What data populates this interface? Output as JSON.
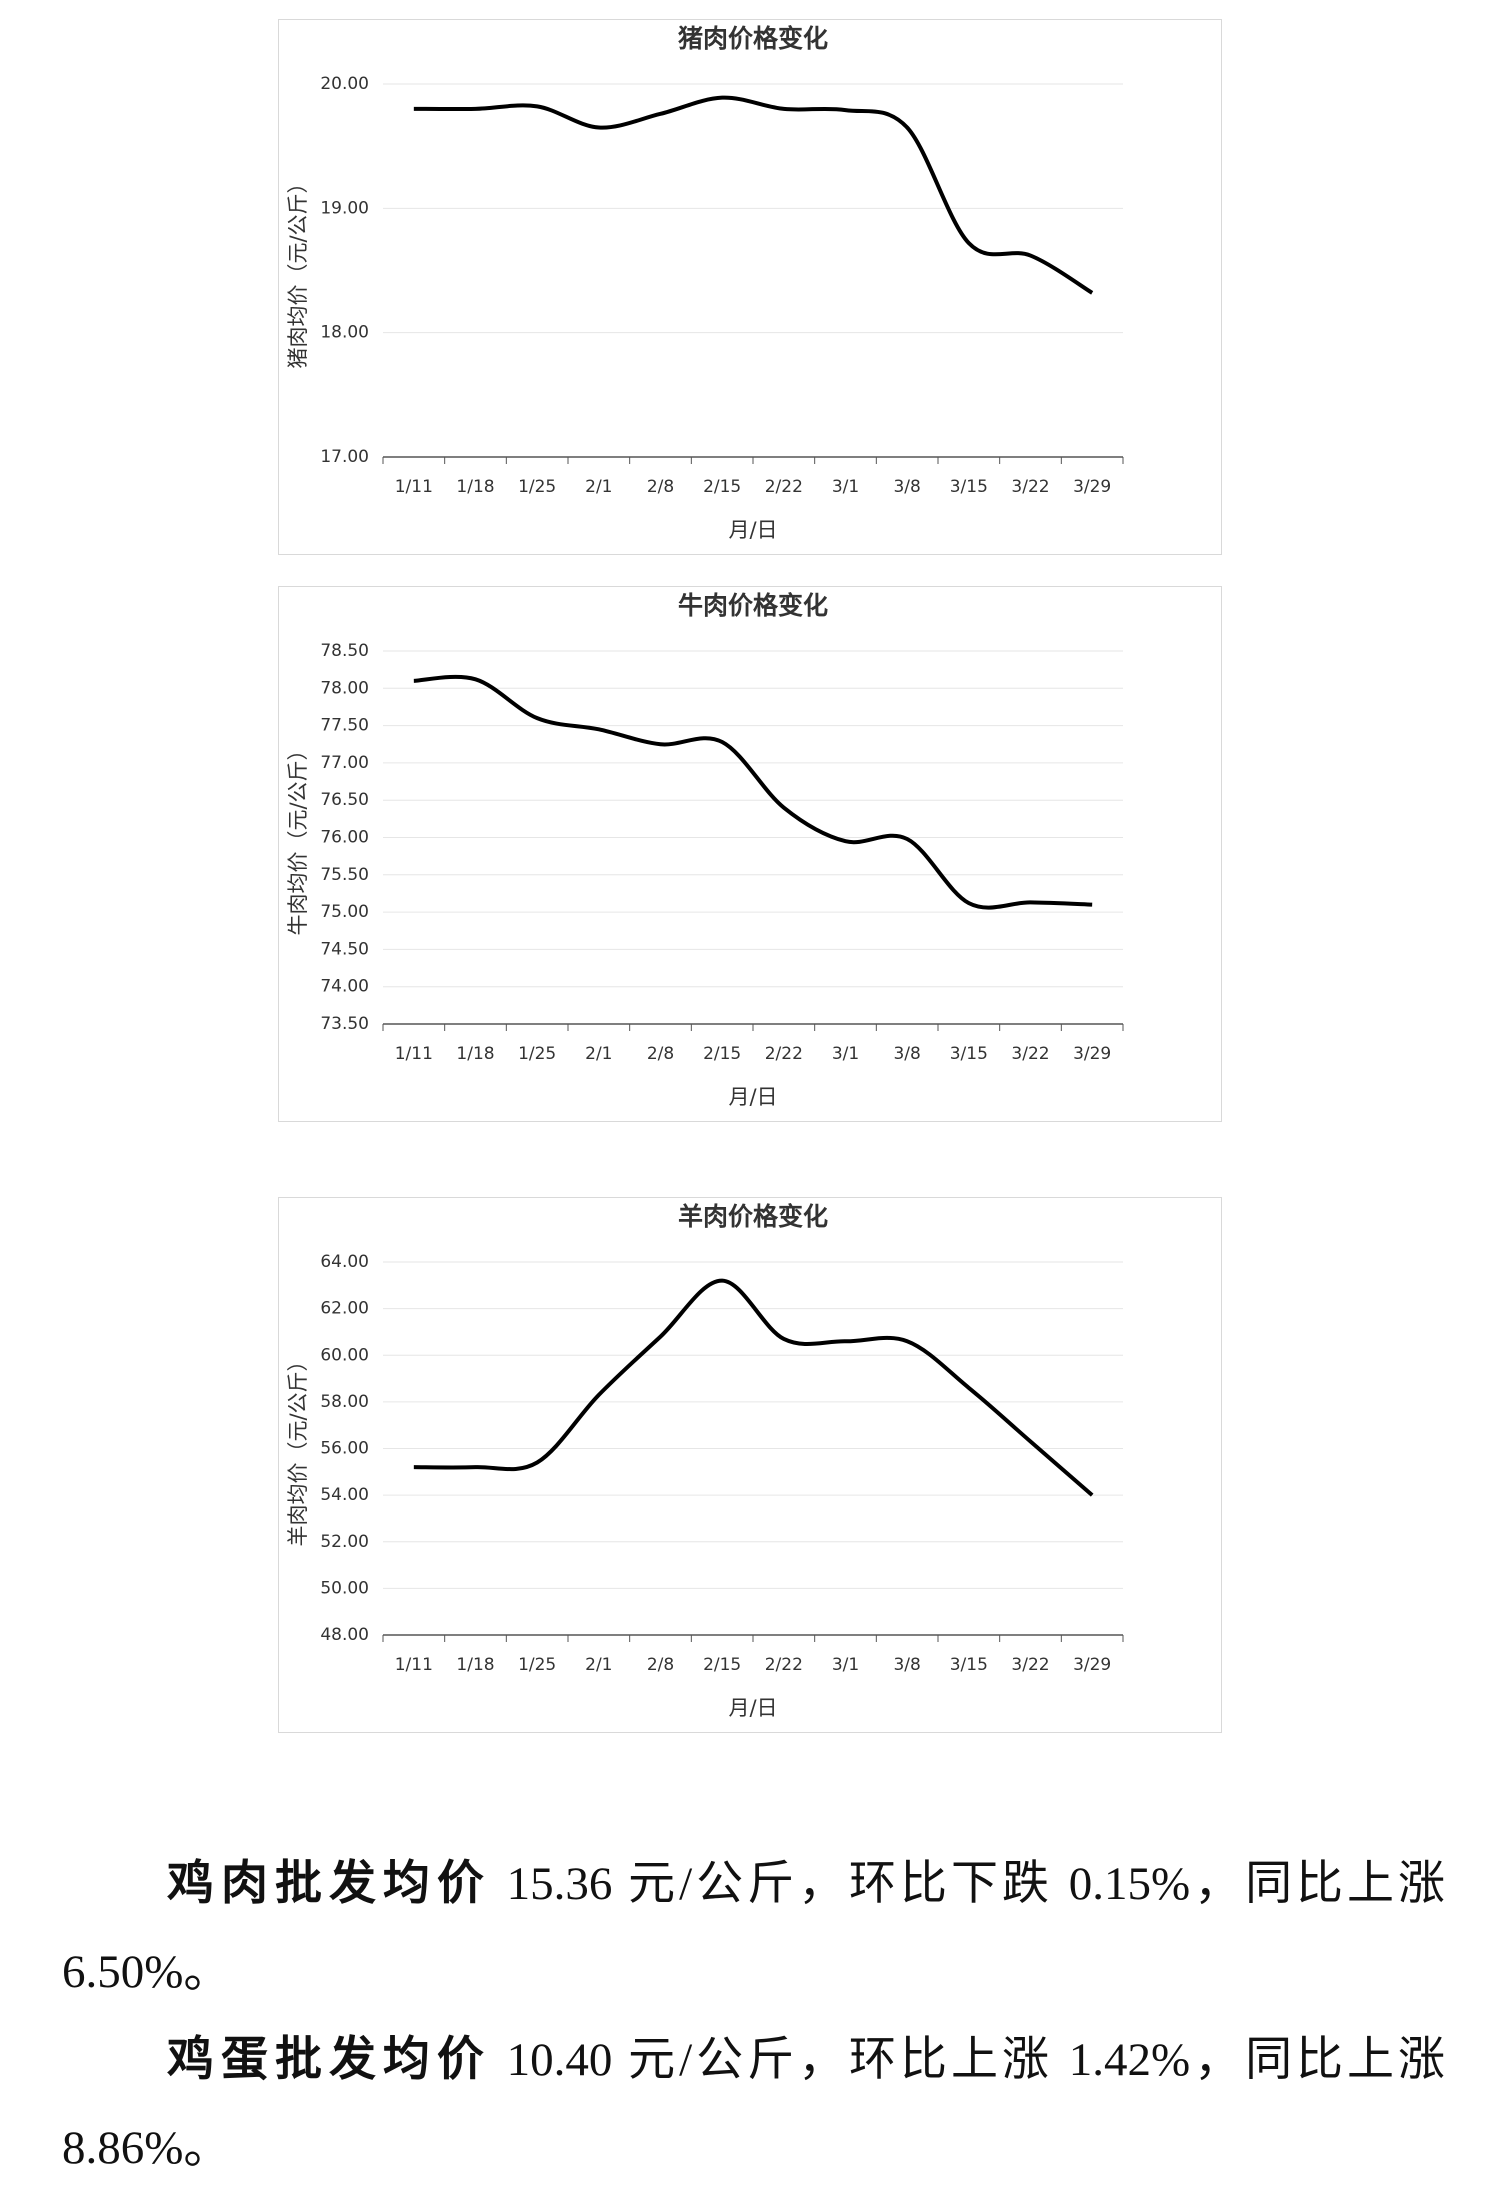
{
  "chart_data": [
    {
      "type": "line",
      "title": "猪肉价格变化",
      "y_label": "猪肉均价（元/公斤）",
      "x_label": "月/日",
      "color": "#000000",
      "categories": [
        "1/11",
        "1/18",
        "1/25",
        "2/1",
        "2/8",
        "2/15",
        "2/22",
        "3/1",
        "3/8",
        "3/15",
        "3/22",
        "3/29"
      ],
      "values": [
        19.8,
        19.8,
        19.82,
        19.65,
        19.76,
        19.89,
        19.8,
        19.79,
        19.65,
        18.72,
        18.62,
        18.32
      ],
      "ylim": [
        17,
        20
      ],
      "yticks": [
        {
          "value": 17,
          "label": "17.00"
        },
        {
          "value": 18,
          "label": "18.00"
        },
        {
          "value": 19,
          "label": "19.00"
        },
        {
          "value": 20,
          "label": "20.00"
        }
      ],
      "grid": true
    },
    {
      "type": "line",
      "title": "牛肉价格变化",
      "y_label": "牛肉均价（元/公斤）",
      "x_label": "月/日",
      "color": "#000000",
      "categories": [
        "1/11",
        "1/18",
        "1/25",
        "2/1",
        "2/8",
        "2/15",
        "2/22",
        "3/1",
        "3/8",
        "3/15",
        "3/22",
        "3/29"
      ],
      "values": [
        78.1,
        78.12,
        77.6,
        77.45,
        77.25,
        77.28,
        76.4,
        75.95,
        75.98,
        75.12,
        75.13,
        75.1
      ],
      "ylim": [
        73.5,
        78.5
      ],
      "yticks": [
        {
          "value": 73.5,
          "label": "73.50"
        },
        {
          "value": 74,
          "label": "74.00"
        },
        {
          "value": 74.5,
          "label": "74.50"
        },
        {
          "value": 75,
          "label": "75.00"
        },
        {
          "value": 75.5,
          "label": "75.50"
        },
        {
          "value": 76,
          "label": "76.00"
        },
        {
          "value": 76.5,
          "label": "76.50"
        },
        {
          "value": 77,
          "label": "77.00"
        },
        {
          "value": 77.5,
          "label": "77.50"
        },
        {
          "value": 78,
          "label": "78.00"
        },
        {
          "value": 78.5,
          "label": "78.50"
        }
      ],
      "grid": true
    },
    {
      "type": "line",
      "title": "羊肉价格变化",
      "y_label": "羊肉均价（元/公斤）",
      "x_label": "月/日",
      "color": "#000000",
      "categories": [
        "1/11",
        "1/18",
        "1/25",
        "2/1",
        "2/8",
        "2/15",
        "2/22",
        "3/1",
        "3/8",
        "3/15",
        "3/22",
        "3/29"
      ],
      "values": [
        55.2,
        55.2,
        55.4,
        58.3,
        60.8,
        63.2,
        60.7,
        60.6,
        60.6,
        58.6,
        56.3,
        54.0
      ],
      "ylim": [
        48,
        64
      ],
      "yticks": [
        {
          "value": 48,
          "label": "48.00"
        },
        {
          "value": 50,
          "label": "50.00"
        },
        {
          "value": 52,
          "label": "52.00"
        },
        {
          "value": 54,
          "label": "54.00"
        },
        {
          "value": 56,
          "label": "56.00"
        },
        {
          "value": 58,
          "label": "58.00"
        },
        {
          "value": 60,
          "label": "60.00"
        },
        {
          "value": 62,
          "label": "62.00"
        },
        {
          "value": 64,
          "label": "64.00"
        }
      ],
      "grid": true
    }
  ],
  "paragraphs": [
    {
      "lead": "鸡肉批发均价",
      "text": "15.36 元/公斤，环比下跌 0.15%，同比上涨 6.50%。"
    },
    {
      "lead": "鸡蛋批发均价",
      "text": "10.40 元/公斤，环比上涨 1.42%，同比上涨 8.86%。"
    }
  ]
}
